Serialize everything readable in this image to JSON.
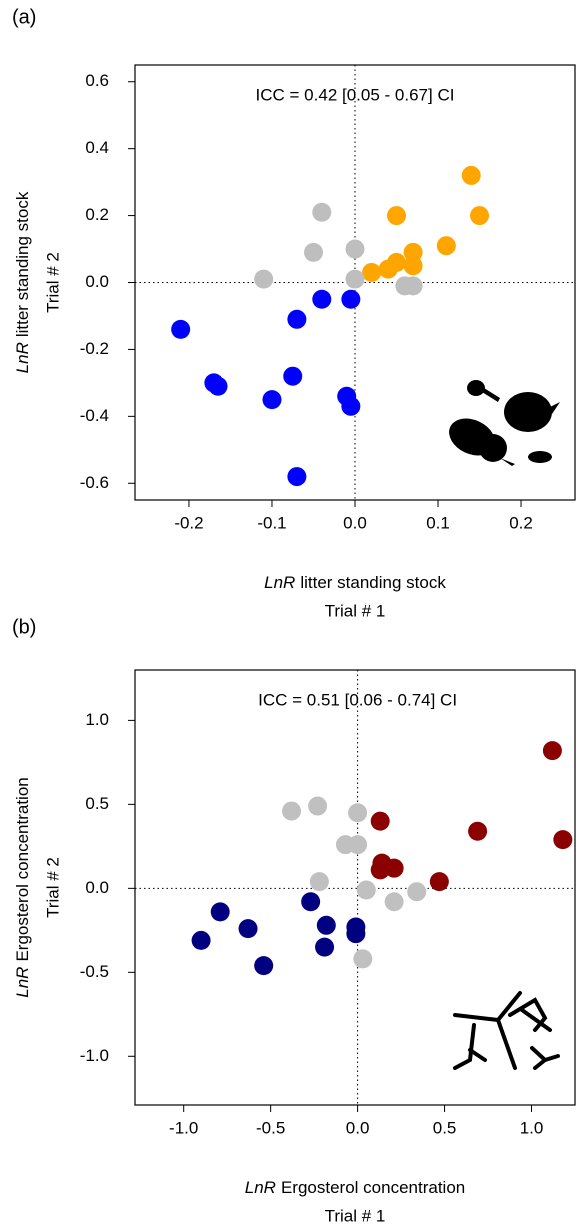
{
  "chart_data": [
    {
      "type": "scatter",
      "panel_label": "(a)",
      "annotation": "ICC = 0.42 [0.05 - 0.67] CI",
      "xlabel": {
        "italic": "LnR",
        "rest": "litter standing stock",
        "line2": "Trial # 1"
      },
      "ylabel": {
        "italic": "LnR",
        "rest": "litter standing stock",
        "line2": "Trial # 2"
      },
      "xlim": [
        -0.265,
        0.265
      ],
      "ylim": [
        -0.65,
        0.65
      ],
      "xticks": [
        -0.2,
        -0.1,
        {
          "value": 0,
          "label": "0.0"
        },
        0.1,
        0.2
      ],
      "yticks": [
        -0.6,
        -0.4,
        -0.2,
        {
          "value": 0,
          "label": "0.0"
        },
        0.2,
        0.4,
        0.6
      ],
      "zero_lines": true,
      "series": [
        {
          "color": "#FFA500",
          "x": [
            0.14,
            0.15,
            0.05,
            0.11,
            0.07,
            0.04,
            0.05,
            0.07,
            0.02
          ],
          "values": [
            0.32,
            0.2,
            0.2,
            0.11,
            0.09,
            0.04,
            0.06,
            0.05,
            0.03
          ]
        },
        {
          "color": "#BEBEBE",
          "x": [
            -0.04,
            0.0,
            -0.05,
            -0.11,
            0.0,
            0.06,
            0.07
          ],
          "values": [
            0.21,
            0.1,
            0.09,
            0.01,
            0.01,
            -0.01,
            -0.01
          ]
        },
        {
          "color": "#0000FF",
          "x": [
            -0.21,
            -0.005,
            -0.04,
            -0.07,
            -0.17,
            -0.165,
            -0.075,
            -0.1,
            -0.01,
            -0.005,
            -0.07
          ],
          "values": [
            -0.14,
            -0.05,
            -0.05,
            -0.11,
            -0.3,
            -0.31,
            -0.28,
            -0.35,
            -0.34,
            -0.37,
            -0.58
          ]
        }
      ]
    },
    {
      "type": "scatter",
      "panel_label": "(b)",
      "annotation": "ICC = 0.51 [0.06 - 0.74] CI",
      "xlabel": {
        "italic": "LnR",
        "rest": "Ergosterol concentration",
        "line2": "Trial # 1"
      },
      "ylabel": {
        "italic": "LnR",
        "rest": "Ergosterol concentration",
        "line2": "Trial # 2"
      },
      "xlim": [
        -1.28,
        1.25
      ],
      "ylim": [
        -1.29,
        1.3
      ],
      "xticks": [
        {
          "value": -1,
          "label": "-1.0"
        },
        -0.5,
        {
          "value": 0,
          "label": "0.0"
        },
        0.5,
        {
          "value": 1,
          "label": "1.0"
        }
      ],
      "yticks": [
        {
          "value": -1,
          "label": "-1.0"
        },
        -0.5,
        {
          "value": 0,
          "label": "0.0"
        },
        0.5,
        {
          "value": 1,
          "label": "1.0"
        }
      ],
      "zero_lines": true,
      "series": [
        {
          "color": "#8B0000",
          "x": [
            1.12,
            1.18,
            0.69,
            0.13,
            0.14,
            0.21,
            0.13,
            0.47
          ],
          "values": [
            0.82,
            0.29,
            0.34,
            0.4,
            0.15,
            0.12,
            0.11,
            0.04
          ]
        },
        {
          "color": "#C0C0C0",
          "x": [
            -0.38,
            -0.23,
            0.0,
            -0.07,
            0.0,
            -0.22,
            0.05,
            0.34,
            0.21,
            0.03
          ],
          "values": [
            0.46,
            0.49,
            0.45,
            0.26,
            0.26,
            0.04,
            -0.01,
            -0.02,
            -0.08,
            -0.42
          ]
        },
        {
          "color": "#000080",
          "x": [
            -0.9,
            -0.79,
            -0.63,
            -0.54,
            -0.27,
            -0.18,
            -0.19,
            -0.01,
            -0.01
          ],
          "values": [
            -0.31,
            -0.14,
            -0.24,
            -0.46,
            -0.08,
            -0.22,
            -0.35,
            -0.23,
            -0.27
          ]
        }
      ]
    }
  ]
}
